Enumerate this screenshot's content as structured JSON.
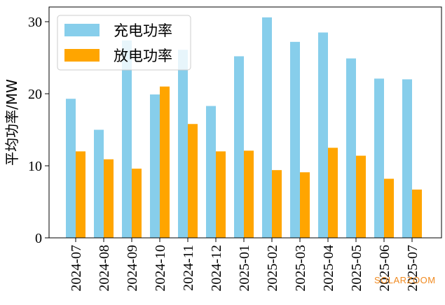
{
  "chart_data": {
    "type": "bar",
    "title": "",
    "xlabel": "",
    "ylabel": "平均功率/MW",
    "ylim": [
      0,
      32
    ],
    "yticks": [
      0,
      10,
      20,
      30
    ],
    "categories": [
      "2024-07",
      "2024-08",
      "2024-09",
      "2024-10",
      "2024-11",
      "2024-12",
      "2025-01",
      "2025-02",
      "2025-03",
      "2025-04",
      "2025-05",
      "2025-06",
      "2025-07"
    ],
    "series": [
      {
        "name": "充电功率",
        "color": "#87ceeb",
        "values": [
          19.3,
          15.0,
          27.4,
          19.9,
          26.1,
          18.3,
          25.2,
          30.6,
          27.2,
          28.5,
          24.9,
          22.1,
          22.0
        ]
      },
      {
        "name": "放电功率",
        "color": "#ffa500",
        "values": [
          12.0,
          10.9,
          9.6,
          21.0,
          15.8,
          12.0,
          12.1,
          9.4,
          9.1,
          12.5,
          11.4,
          8.2,
          6.7
        ]
      }
    ],
    "legend": "top-left",
    "grid": false
  },
  "watermark": "SOLARZOOM"
}
